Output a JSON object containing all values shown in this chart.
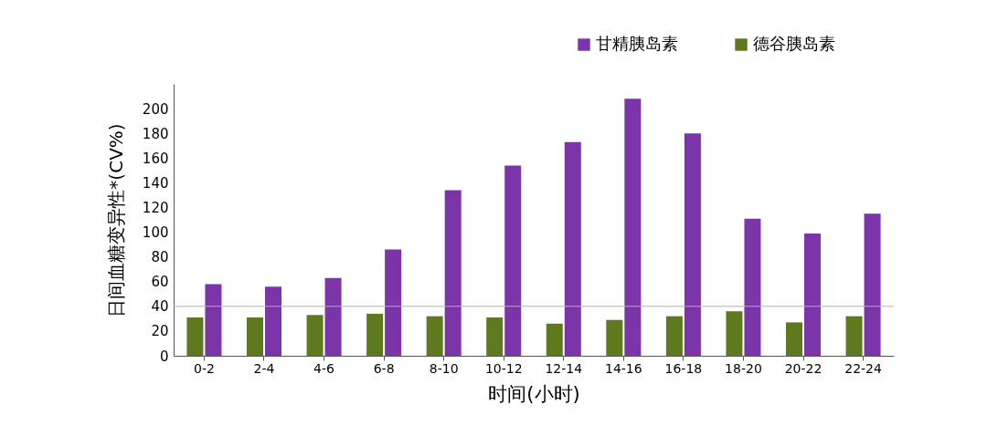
{
  "chart_data": {
    "type": "bar",
    "xlabel": "时间(小时)",
    "ylabel": "日间血糖变异性*(CV%)",
    "categories": [
      "0-2",
      "2-4",
      "4-6",
      "6-8",
      "8-10",
      "10-12",
      "12-14",
      "14-16",
      "16-18",
      "18-20",
      "20-22",
      "22-24"
    ],
    "series": [
      {
        "name": "甘精胰岛素",
        "color": "#7b35a8",
        "values": [
          58,
          56,
          63,
          86,
          134,
          154,
          173,
          208,
          180,
          111,
          99,
          115
        ]
      },
      {
        "name": "德谷胰岛素",
        "color": "#5f7a1e",
        "values": [
          31,
          31,
          33,
          34,
          32,
          31,
          26,
          29,
          32,
          36,
          27,
          32
        ]
      }
    ],
    "ylim": [
      0,
      220
    ],
    "yticks": [
      0,
      20,
      40,
      60,
      80,
      100,
      120,
      140,
      160,
      180,
      200
    ],
    "grid": false,
    "legend": "top right",
    "ref_lines": [
      {
        "axis": "y",
        "value": 40,
        "color": "#b0b0b0"
      }
    ]
  }
}
